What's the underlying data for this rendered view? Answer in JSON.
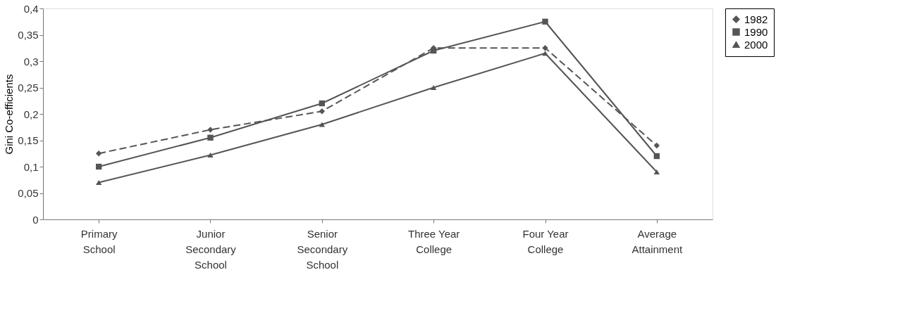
{
  "chart_data": {
    "type": "line",
    "ylabel": "Gini Co-efficients",
    "categories": [
      "Primary School",
      "Junior Secondary School",
      "Senior Secondary School",
      "Three Year College",
      "Four Year College",
      "Average Attainment"
    ],
    "series": [
      {
        "name": "1982",
        "color": "#555555",
        "marker": "diamond",
        "line_style": "dashed",
        "values": [
          0.125,
          0.17,
          0.205,
          0.325,
          0.325,
          0.14
        ]
      },
      {
        "name": "1990",
        "color": "#555555",
        "marker": "square",
        "line_style": "solid",
        "values": [
          0.1,
          0.155,
          0.22,
          0.32,
          0.375,
          0.12
        ]
      },
      {
        "name": "2000",
        "color": "#555555",
        "marker": "triangle",
        "line_style": "solid",
        "values": [
          0.07,
          0.122,
          0.18,
          0.25,
          0.315,
          0.09
        ]
      }
    ],
    "ylim": [
      0,
      0.4
    ],
    "yticks": [
      {
        "value": 0,
        "label": "0"
      },
      {
        "value": 0.05,
        "label": "0,05"
      },
      {
        "value": 0.1,
        "label": "0,1"
      },
      {
        "value": 0.15,
        "label": "0,15"
      },
      {
        "value": 0.2,
        "label": "0,2"
      },
      {
        "value": 0.25,
        "label": "0,25"
      },
      {
        "value": 0.3,
        "label": "0,3"
      },
      {
        "value": 0.35,
        "label": "0,35"
      },
      {
        "value": 0.4,
        "label": "0,4"
      }
    ],
    "grid": false,
    "legend": "right"
  }
}
